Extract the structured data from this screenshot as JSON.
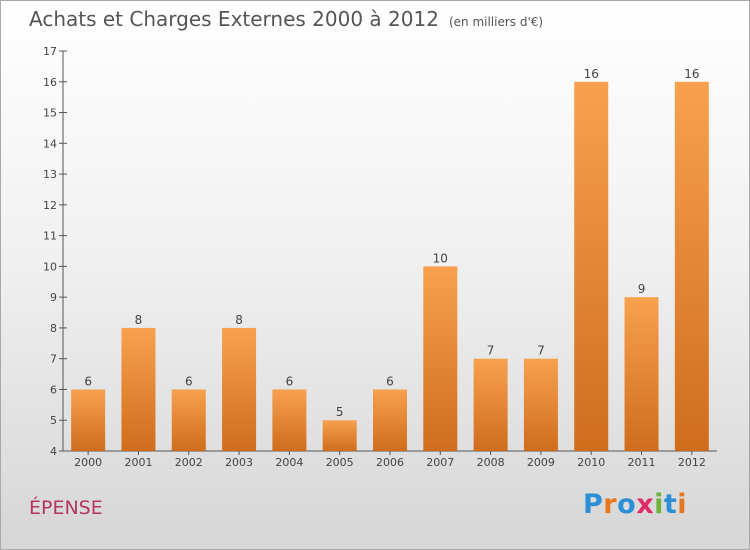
{
  "title": "Achats et Charges Externes 2000 à 2012",
  "subtitle": "(en milliers d'€)",
  "commune": "ÉPENSE",
  "brand": "Proxiti",
  "colors": {
    "bar_top": "#f7a14f",
    "bar_bottom": "#cf6d1c",
    "title": "#555555",
    "commune": "#b5355f",
    "logo_letters": [
      "#2b8fd6",
      "#e8761c",
      "#2b8fd6",
      "#e02b6a",
      "#6cb33f",
      "#2b8fd6",
      "#e8761c"
    ]
  },
  "chart_data": {
    "type": "bar",
    "categories": [
      "2000",
      "2001",
      "2002",
      "2003",
      "2004",
      "2005",
      "2006",
      "2007",
      "2008",
      "2009",
      "2010",
      "2011",
      "2012"
    ],
    "values": [
      6,
      8,
      6,
      8,
      6,
      5,
      6,
      10,
      7,
      7,
      16,
      9,
      16
    ],
    "ylim": [
      4,
      17
    ],
    "yticks": [
      4,
      5,
      6,
      7,
      8,
      9,
      10,
      11,
      12,
      13,
      14,
      15,
      16,
      17
    ],
    "grid": false,
    "data_labels": true
  }
}
